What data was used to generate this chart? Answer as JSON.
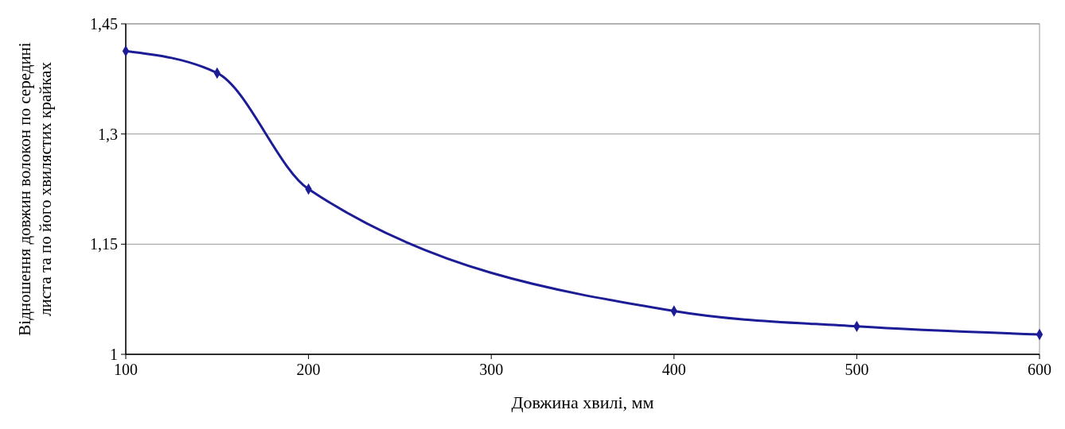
{
  "chart_data": {
    "type": "line",
    "xlabel": "Довжина хвилі, мм",
    "ylabel": "Відношення довжин волокон по середині\nлиста та по його хвилястих крайках",
    "x": [
      100,
      150,
      200,
      400,
      500,
      600
    ],
    "series": [
      {
        "color": "#1c1c96",
        "values": [
          1.413,
          1.383,
          1.225,
          1.059,
          1.038,
          1.027
        ]
      }
    ],
    "xlim": [
      100,
      600
    ],
    "xticks": [
      100,
      200,
      300,
      400,
      500,
      600
    ],
    "ylim": [
      1,
      1.45
    ],
    "yticks": [
      {
        "value": 1,
        "label": "1"
      },
      {
        "value": 1.15,
        "label": "1,15"
      },
      {
        "value": 1.3,
        "label": "1,3"
      },
      {
        "value": 1.45,
        "label": "1,45"
      }
    ],
    "grid": "y",
    "marker": "diamond",
    "line_style": "solid"
  }
}
